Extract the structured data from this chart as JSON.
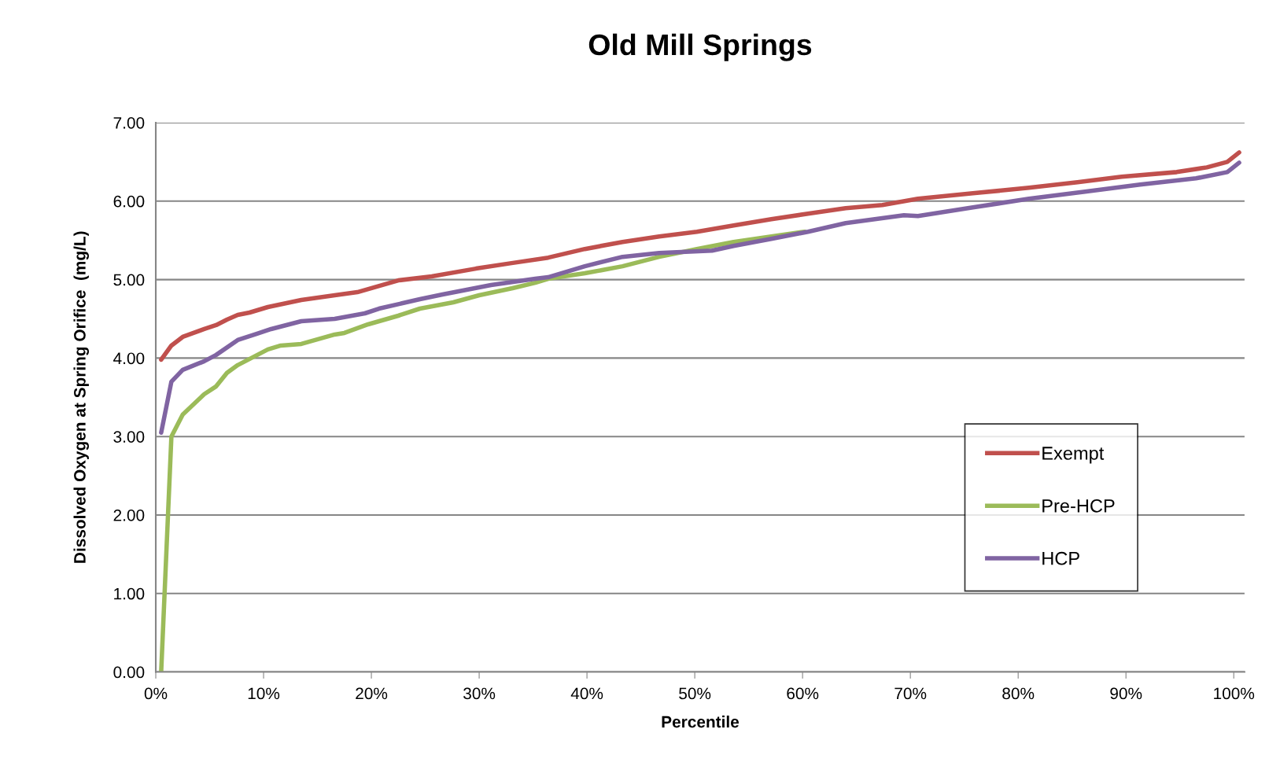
{
  "chart_data": {
    "type": "line",
    "title": "Old Mill Springs",
    "xlabel": "Percentile",
    "ylabel": "Dissolved Oxygen at Spring Orifice  (mg/L)",
    "xlim": [
      0,
      101
    ],
    "ylim": [
      0,
      7
    ],
    "xticks": [
      {
        "value": 0,
        "label": "0%"
      },
      {
        "value": 10,
        "label": "10%"
      },
      {
        "value": 20,
        "label": "20%"
      },
      {
        "value": 30,
        "label": "30%"
      },
      {
        "value": 40,
        "label": "40%"
      },
      {
        "value": 50,
        "label": "50%"
      },
      {
        "value": 60,
        "label": "60%"
      },
      {
        "value": 70,
        "label": "70%"
      },
      {
        "value": 80,
        "label": "80%"
      },
      {
        "value": 90,
        "label": "90%"
      },
      {
        "value": 100,
        "label": "100%"
      }
    ],
    "yticks": [
      {
        "value": 0,
        "label": "0.00"
      },
      {
        "value": 1,
        "label": "1.00"
      },
      {
        "value": 2,
        "label": "2.00"
      },
      {
        "value": 3,
        "label": "3.00"
      },
      {
        "value": 4,
        "label": "4.00"
      },
      {
        "value": 5,
        "label": "5.00"
      },
      {
        "value": 6,
        "label": "6.00"
      },
      {
        "value": 7,
        "label": "7.00"
      }
    ],
    "grid": "y",
    "legend": "bottom right",
    "marker": "none",
    "line_style": "solid",
    "series": [
      {
        "name": "Exempt",
        "color": "#c0504d",
        "x": [
          0.5,
          1.45,
          2.5,
          3.5,
          4.5,
          5.6,
          6.6,
          7.6,
          8.7,
          10.4,
          13.5,
          16.6,
          18.7,
          22.5,
          25.6,
          29.7,
          33.0,
          36.4,
          39.8,
          43.3,
          46.7,
          50.2,
          53.6,
          57.1,
          60.5,
          64.0,
          67.4,
          70.7,
          75.8,
          81.0,
          85.5,
          89.6,
          94.7,
          97.5,
          99.4,
          100.5
        ],
        "values": [
          3.98,
          4.16,
          4.27,
          4.32,
          4.37,
          4.42,
          4.49,
          4.55,
          4.58,
          4.65,
          4.74,
          4.8,
          4.84,
          4.99,
          5.04,
          5.14,
          5.21,
          5.28,
          5.39,
          5.48,
          5.55,
          5.61,
          5.69,
          5.77,
          5.84,
          5.91,
          5.95,
          6.03,
          6.1,
          6.17,
          6.24,
          6.31,
          6.37,
          6.43,
          6.5,
          6.62
        ]
      },
      {
        "name": "Pre-HCP",
        "color": "#9bbb59",
        "x": [
          0.5,
          1.45,
          2.5,
          4.5,
          5.6,
          6.6,
          7.6,
          10.4,
          11.6,
          13.5,
          16.6,
          17.5,
          19.7,
          22.5,
          24.5,
          27.6,
          30.0,
          33.1,
          35.2,
          36.4,
          39.8,
          43.3,
          46.7,
          50.2,
          53.6,
          57.1,
          60.2
        ],
        "values": [
          0.0,
          3.0,
          3.28,
          3.54,
          3.64,
          3.81,
          3.91,
          4.11,
          4.16,
          4.18,
          4.3,
          4.32,
          4.43,
          4.54,
          4.63,
          4.71,
          4.8,
          4.89,
          4.96,
          5.01,
          5.08,
          5.17,
          5.29,
          5.39,
          5.48,
          5.55,
          5.61
        ]
      },
      {
        "name": "HCP",
        "color": "#8064a2",
        "x": [
          0.5,
          1.45,
          2.5,
          4.5,
          5.6,
          7.6,
          9.4,
          10.7,
          13.5,
          16.6,
          19.4,
          20.7,
          24.5,
          26.6,
          31.1,
          35.2,
          36.4,
          39.8,
          43.3,
          46.7,
          51.6,
          53.6,
          57.1,
          60.5,
          64.0,
          69.4,
          70.7,
          75.8,
          81.0,
          86.2,
          91.3,
          96.5,
          99.4,
          100.5
        ],
        "values": [
          3.05,
          3.7,
          3.85,
          3.96,
          4.04,
          4.23,
          4.31,
          4.37,
          4.47,
          4.5,
          4.57,
          4.63,
          4.75,
          4.81,
          4.93,
          5.01,
          5.03,
          5.17,
          5.29,
          5.34,
          5.37,
          5.43,
          5.52,
          5.61,
          5.72,
          5.82,
          5.81,
          5.92,
          6.03,
          6.12,
          6.21,
          6.29,
          6.37,
          6.49
        ]
      }
    ]
  }
}
